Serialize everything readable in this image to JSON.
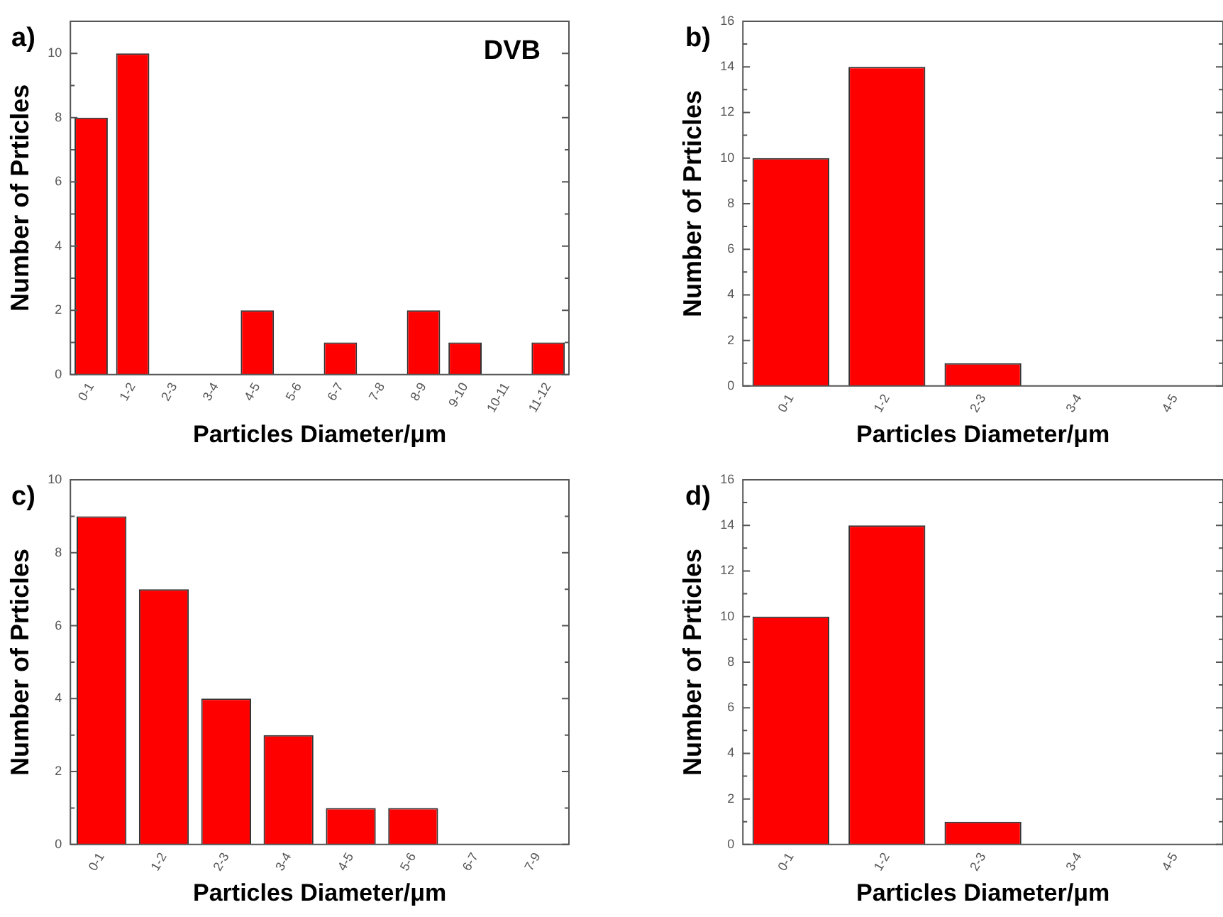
{
  "chart_data": [
    {
      "type": "bar",
      "title": "a)",
      "xlabel": "Particles Diameter/μm",
      "ylabel": "Number of Prticles",
      "categories": [
        "0-1",
        "1-2",
        "2-3",
        "3-4",
        "4-5",
        "5-6",
        "6-7",
        "7-8",
        "8-9",
        "9-10",
        "10-11",
        "11-12"
      ],
      "values": [
        8,
        10,
        0,
        0,
        2,
        0,
        1,
        0,
        2,
        1,
        0,
        1
      ],
      "color": "#ff0000",
      "ylim": [
        0,
        11
      ],
      "yticks": [
        0,
        2,
        4,
        6,
        8,
        10
      ],
      "grid": false,
      "annotations": [
        "DVB"
      ]
    },
    {
      "type": "bar",
      "title": "b)",
      "xlabel": "Particles Diameter/μm",
      "ylabel": "Number of Prticles",
      "categories": [
        "0-1",
        "1-2",
        "2-3",
        "3-4",
        "4-5"
      ],
      "values": [
        10,
        14,
        1,
        0,
        0
      ],
      "color": "#ff0000",
      "ylim": [
        0,
        16
      ],
      "yticks": [
        0,
        2,
        4,
        6,
        8,
        10,
        12,
        14,
        16
      ],
      "grid": false
    },
    {
      "type": "bar",
      "title": "c)",
      "xlabel": "Particles Diameter/μm",
      "ylabel": "Number of Prticles",
      "categories": [
        "0-1",
        "1-2",
        "2-3",
        "3-4",
        "4-5",
        "5-6",
        "6-7",
        "7-9"
      ],
      "values": [
        9,
        7,
        4,
        3,
        1,
        1,
        0,
        0
      ],
      "color": "#ff0000",
      "ylim": [
        0,
        10
      ],
      "yticks": [
        0,
        2,
        4,
        6,
        8,
        10
      ],
      "grid": false
    },
    {
      "type": "bar",
      "title": "d)",
      "xlabel": "Particles Diameter/μm",
      "ylabel": "Number of Prticles",
      "categories": [
        "0-1",
        "1-2",
        "2-3",
        "3-4",
        "4-5"
      ],
      "values": [
        10,
        14,
        1,
        0,
        0
      ],
      "color": "#ff0000",
      "ylim": [
        0,
        16
      ],
      "yticks": [
        0,
        2,
        4,
        6,
        8,
        10,
        12,
        14,
        16
      ],
      "grid": false
    }
  ]
}
